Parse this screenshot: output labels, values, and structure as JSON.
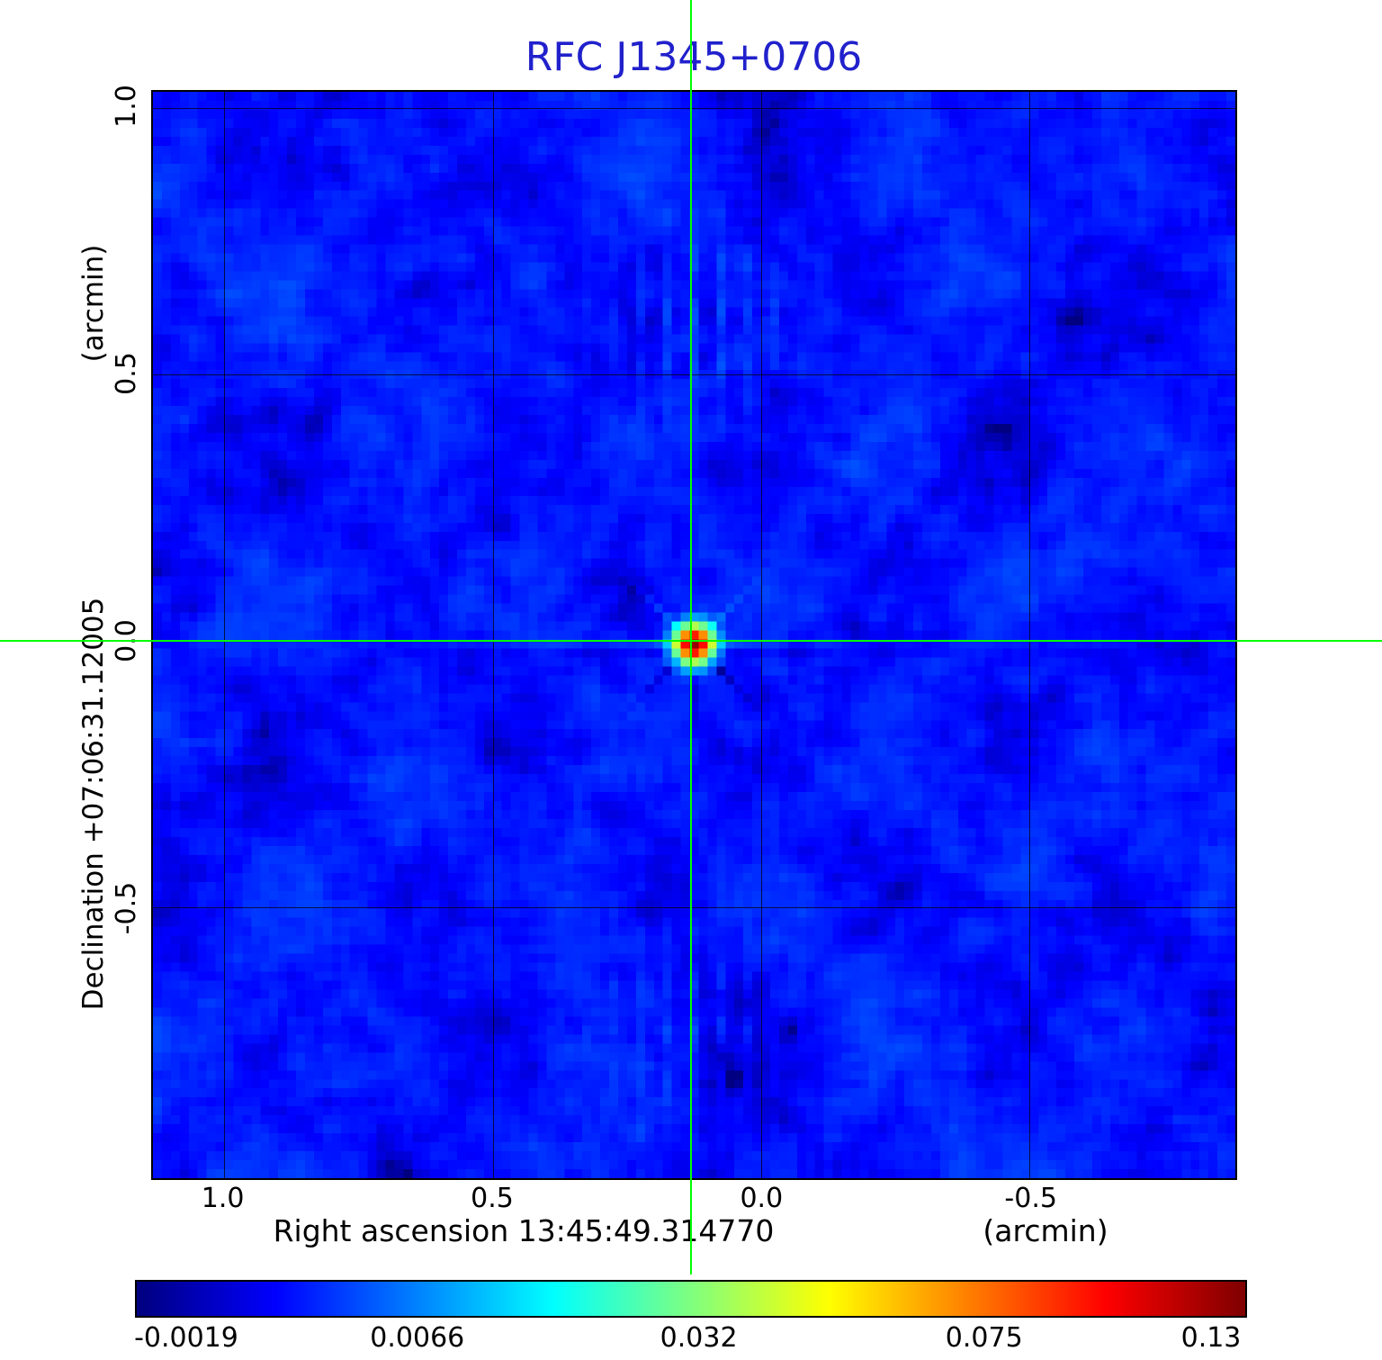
{
  "chart_data": {
    "type": "heatmap",
    "title": "RFC J1345+0706",
    "x_axis": {
      "label": "Right ascension  13:45:49.314770",
      "unit": "(arcmin)",
      "range": [
        1.133,
        -0.883
      ],
      "ticks": [
        {
          "label": "1.0",
          "value": 1.0
        },
        {
          "label": "0.5",
          "value": 0.5
        },
        {
          "label": "0.0",
          "value": 0.0
        },
        {
          "label": "-0.5",
          "value": -0.5
        }
      ]
    },
    "y_axis": {
      "label": "Declination  +07:06:31.12005",
      "unit": "(arcmin)",
      "range": [
        1.031,
        -1.009
      ],
      "ticks": [
        {
          "label": "1.0",
          "value": 1.0
        },
        {
          "label": "0.5",
          "value": 0.5
        },
        {
          "label": "0.0",
          "value": 0.0
        },
        {
          "label": "-0.5",
          "value": -0.5
        }
      ]
    },
    "grid": true,
    "colormap": "jet",
    "scale": "sqrt",
    "value_min": -0.0019,
    "value_max": 0.13,
    "colorbar_ticks": [
      "-0.0019",
      "0.0066",
      "0.032",
      "0.075",
      "0.13"
    ],
    "background_level": 0.0,
    "peak": {
      "x_arcmin": 0.131,
      "y_arcmin": 0.0,
      "value": 0.13
    },
    "crosshair": {
      "x_arcmin": 0.131,
      "y_arcmin": 0.0
    }
  },
  "colors": {
    "title": "#2121cc",
    "crosshair": "#00ff00",
    "grid": "#000000",
    "frame": "#000000"
  }
}
